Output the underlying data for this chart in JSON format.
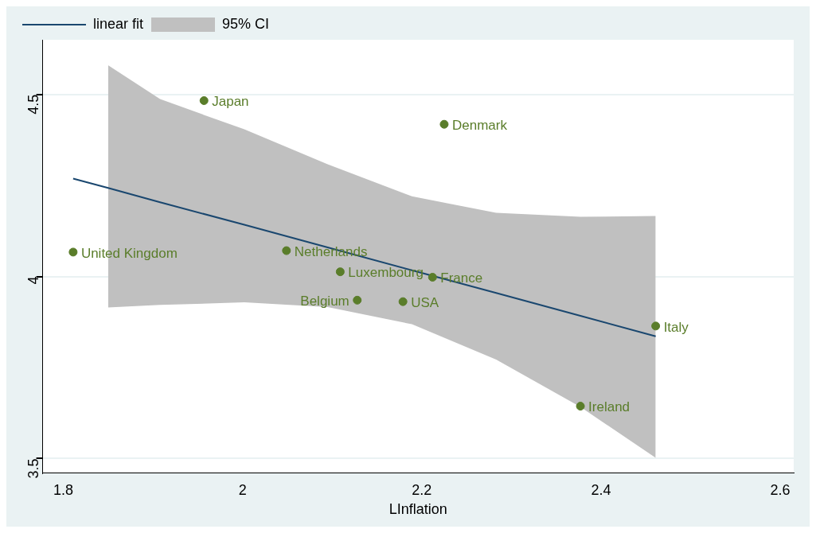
{
  "chart_data": {
    "type": "scatter",
    "xlabel": "LInflation",
    "xlim": [
      1.777,
      2.615
    ],
    "xticks": [
      {
        "value": 1.8,
        "label": "1.8"
      },
      2,
      {
        "value": 2.2,
        "label": "2.2"
      },
      {
        "value": 2.4,
        "label": "2.4"
      },
      {
        "value": 2.6,
        "label": "2.6"
      }
    ],
    "ylim": [
      3.46,
      4.65
    ],
    "yticks": [
      {
        "value": 3.5,
        "label": "3.5"
      },
      4,
      {
        "value": 4.5,
        "label": "4.5"
      }
    ],
    "grid": "y",
    "legend": "top left",
    "series": [
      {
        "marker": "circle",
        "color": "#5a7d2a",
        "x": [
          1.957,
          2.225,
          1.811,
          2.049,
          2.109,
          2.212,
          2.128,
          2.179,
          2.461,
          2.377
        ],
        "values": [
          4.483,
          4.418,
          4.067,
          4.071,
          4.013,
          3.998,
          3.935,
          3.931,
          3.864,
          3.644
        ]
      },
      {
        "type": "line",
        "name": "linear fit",
        "color": "#1a476f",
        "line_style": "solid",
        "x": [
          1.811,
          1.85,
          1.908,
          2.002,
          2.095,
          2.189,
          2.283,
          2.377,
          2.461
        ],
        "values": [
          4.269,
          4.243,
          4.204,
          4.142,
          4.08,
          4.017,
          3.955,
          3.892,
          3.836
        ],
        "lower": [
          null,
          3.915,
          3.922,
          3.929,
          3.916,
          3.869,
          3.772,
          3.642,
          3.502
        ],
        "upper": [
          null,
          4.58,
          4.487,
          4.404,
          4.308,
          4.22,
          4.175,
          4.164,
          4.166
        ]
      }
    ],
    "legend_title": "95% CI",
    "annotations": [
      {
        "text": "Japan",
        "x": 1.957,
        "y": 4.483
      },
      {
        "text": "Denmark",
        "x": 2.225,
        "y": 4.418
      },
      {
        "text": "United Kingdom",
        "x": 1.811,
        "y": 4.067
      },
      {
        "text": "Netherlands",
        "x": 2.049,
        "y": 4.071
      },
      {
        "text": "Luxembourg",
        "x": 2.109,
        "y": 4.013
      },
      {
        "text": "France",
        "x": 2.212,
        "y": 3.998
      },
      {
        "text": "Belgium",
        "x": 2.128,
        "y": 3.935
      },
      {
        "text": "USA",
        "x": 2.179,
        "y": 3.931
      },
      {
        "text": "Italy",
        "x": 2.461,
        "y": 3.864
      },
      {
        "text": "Ireland",
        "x": 2.377,
        "y": 3.644
      }
    ]
  }
}
